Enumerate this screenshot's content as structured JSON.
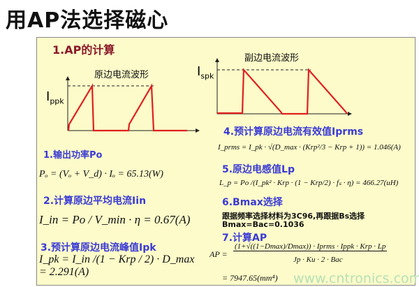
{
  "title": "用AP法选择磁心",
  "heading": "1.AP的计算",
  "primary_wave": {
    "title": "原边电流波形",
    "ylabel": "I",
    "ysub": "ppk"
  },
  "secondary_wave": {
    "title": "副边电流波形",
    "ylabel": "I",
    "ysub": "spk"
  },
  "sections": [
    {
      "label": "1.输出功率Po",
      "formula": "Pₒ = (Vₒ + V_d) · Iₒ = 65.13(W)"
    },
    {
      "label": "2.计算原边平均电流Iin",
      "formula": "I_in = Po / V_min · η = 0.67(A)"
    },
    {
      "label": "3.预计算原边电流峰值Ipk",
      "formula": "I_pk = I_in /(1 − Krp / 2) · D_max = 2.291(A)"
    },
    {
      "label": "4.预计算原边电流有效值Iprms",
      "formula": "I_prms = I_pk · √(D_max · (Krp²/3 − Krp + 1)) = 1.046(A)"
    },
    {
      "label": "5.原边电感值Lp",
      "formula": "L_p = Po /(I_pk² · Krp · (1 − Krp/2) · fₛ · η) = 466.27(uH)"
    },
    {
      "label": "6.Bmax选择",
      "note1": "跟据频率选择材料为3C96,再跟据Bs选择",
      "note2": "Bmax=Bac=0.1036"
    },
    {
      "label": "7.计算AP",
      "numerator": "(1+√((1−Dmax)/Dmax)) · Iprms · Ippk · Krp · Lp",
      "denominator": "Jp · Ku · 2 · Bac",
      "lhs": "AP =",
      "result": "= 7947.65(mm⁴)"
    }
  ],
  "watermark": "www.cntronics.com",
  "colors": {
    "section": "#3b3bd6",
    "heading": "#8b1a2a",
    "wave": "#e02020",
    "panel": "#fcfbc9"
  }
}
